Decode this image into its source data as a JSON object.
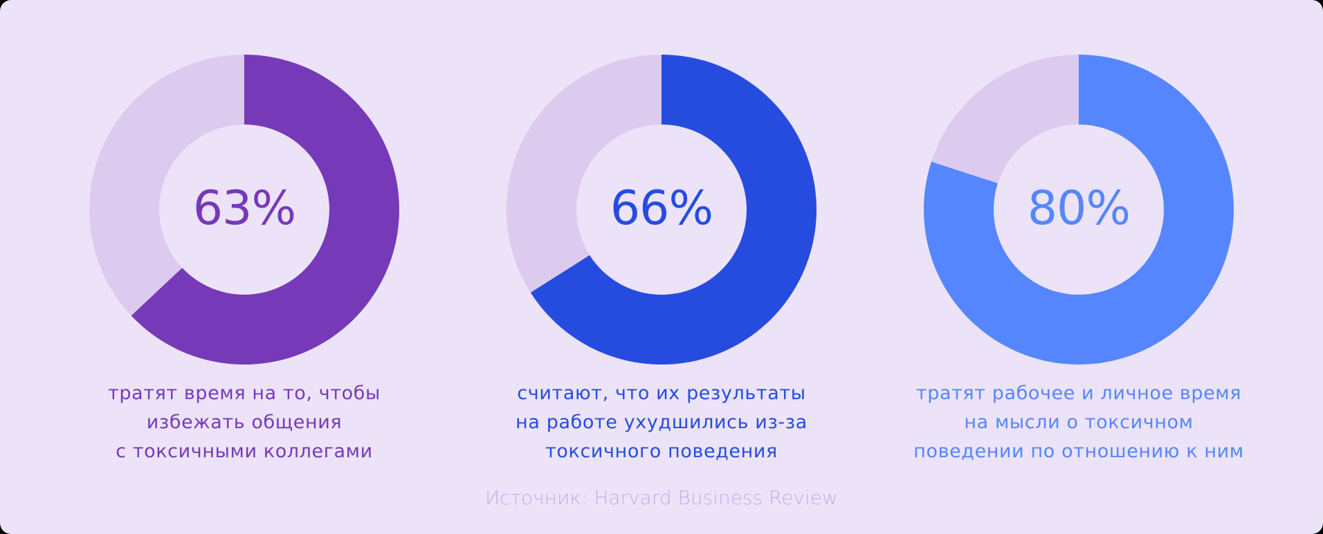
{
  "colors": {
    "background": "#ECE3F8",
    "track": "#DCCAEF",
    "purple": "#7639B8",
    "blue": "#254CDF",
    "light_blue": "#5586FD",
    "source": "#C8ABEA"
  },
  "stats": [
    {
      "value": 63,
      "label": "63%",
      "color": "#7639B8",
      "caption": [
        "тратят время на то, чтобы",
        "избежать общения",
        "с токсичными коллегами"
      ]
    },
    {
      "value": 66,
      "label": "66%",
      "color": "#254CDF",
      "caption": [
        "считают, что их результаты",
        "на работе ухудшились из-за",
        "токсичного поведения"
      ]
    },
    {
      "value": 80,
      "label": "80%",
      "color": "#5586FD",
      "caption": [
        "тратят рабочее и личное время",
        "на мысли о токсичном",
        "поведении по отношению к ним"
      ]
    }
  ],
  "source": "Источник: Harvard Business Review",
  "chart_data": [
    {
      "type": "pie",
      "title": "63%",
      "categories": [
        "тратят время на то, чтобы избежать общения с токсичными коллегами",
        "остальные"
      ],
      "values": [
        63,
        37
      ],
      "colors": [
        "#7639B8",
        "#DCCAEF"
      ]
    },
    {
      "type": "pie",
      "title": "66%",
      "categories": [
        "считают, что их результаты на работе ухудшились из-за токсичного поведения",
        "остальные"
      ],
      "values": [
        66,
        34
      ],
      "colors": [
        "#254CDF",
        "#DCCAEF"
      ]
    },
    {
      "type": "pie",
      "title": "80%",
      "categories": [
        "тратят рабочее и личное время на мысли о токсичном поведении по отношению к ним",
        "остальные"
      ],
      "values": [
        80,
        20
      ],
      "colors": [
        "#5586FD",
        "#DCCAEF"
      ]
    }
  ]
}
